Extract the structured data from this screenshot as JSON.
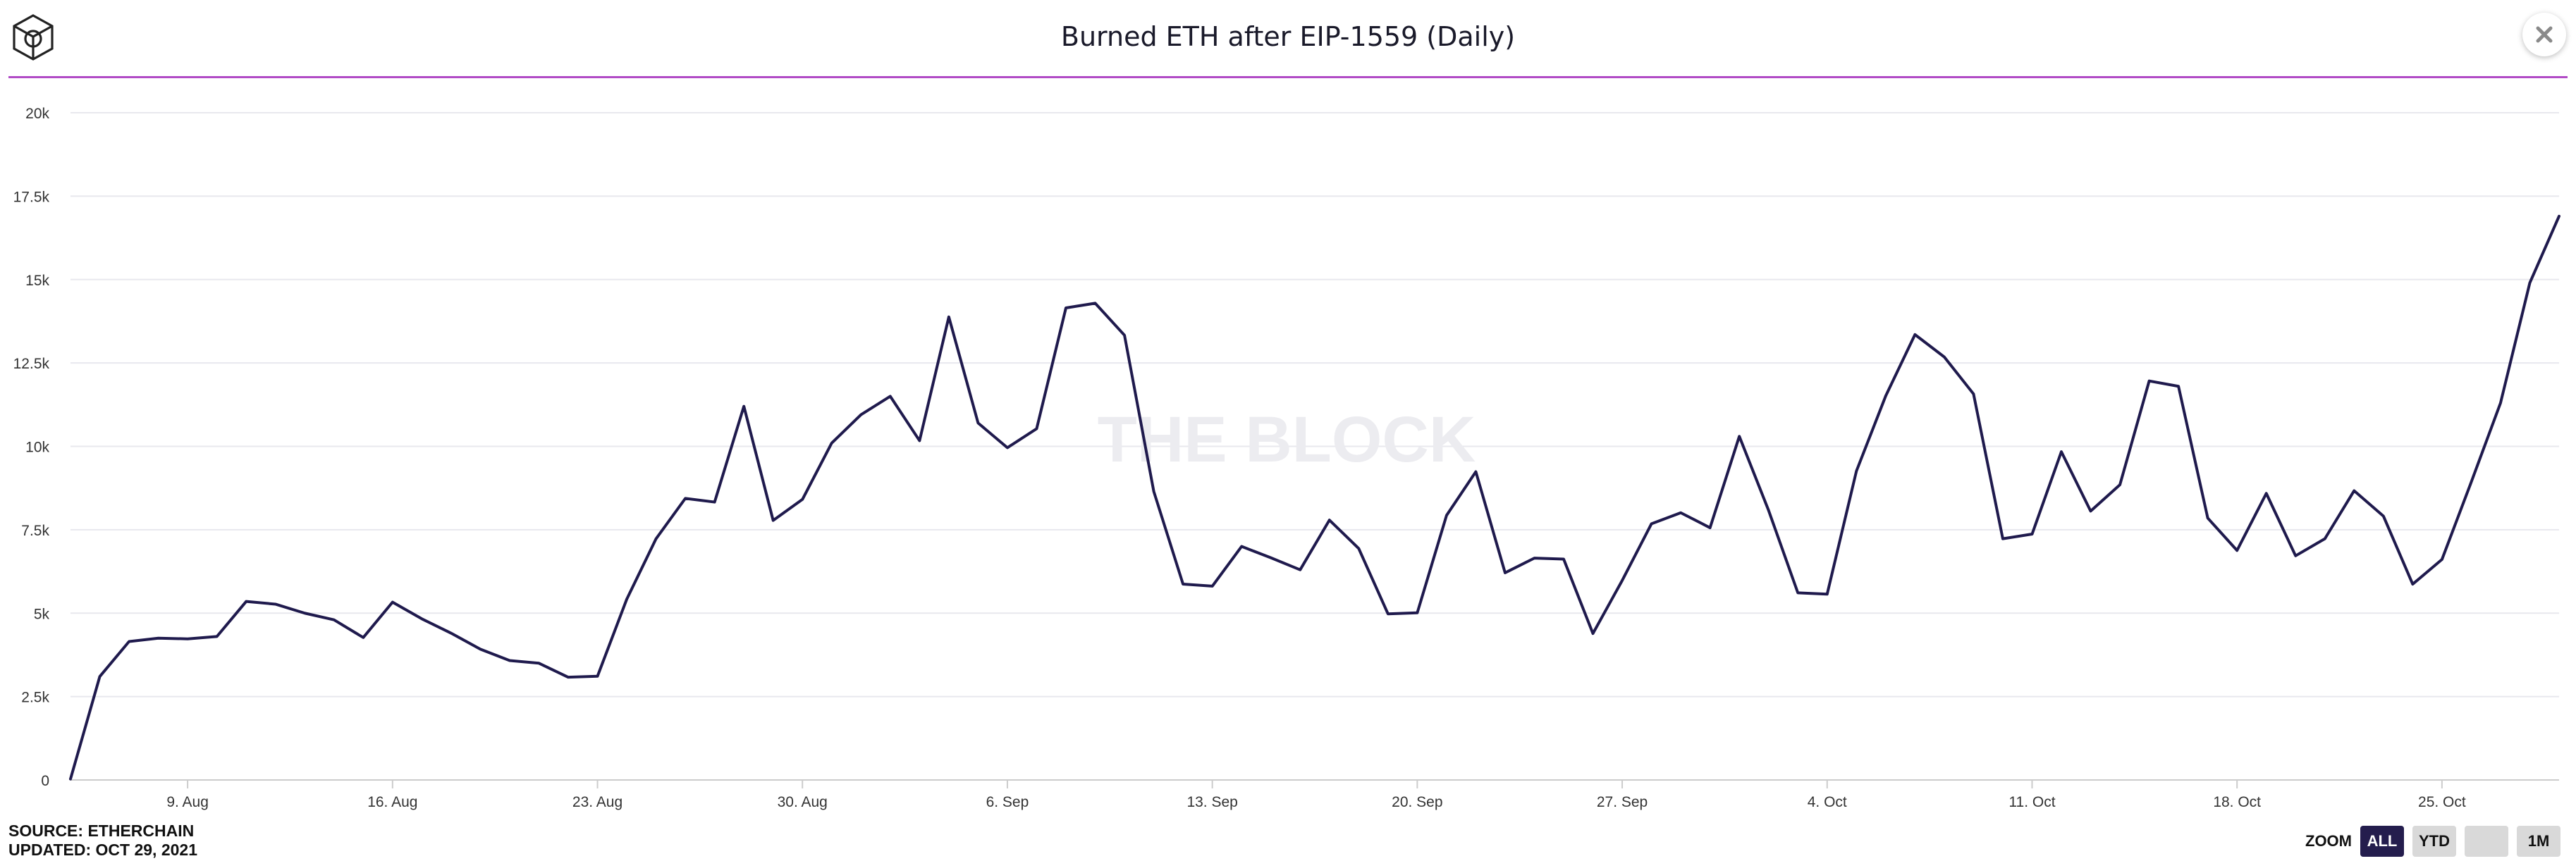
{
  "title": "Burned ETH after EIP-1559 (Daily)",
  "watermark": "THE BLOCK",
  "footer": {
    "source": "SOURCE: ETHERCHAIN",
    "updated": "UPDATED: OCT 29, 2021"
  },
  "zoom": {
    "label": "ZOOM",
    "buttons": [
      "ALL",
      "YTD",
      "",
      "1M"
    ],
    "active": "ALL"
  },
  "icons": {
    "logo": "the-block-cube-logo",
    "close": "close-icon"
  },
  "colors": {
    "line": "#1f1a4d",
    "title_rule": "#b14bc6",
    "grid": "#e8e8ee",
    "active_button": "#241d4d"
  },
  "chart_data": {
    "type": "line",
    "title": "Burned ETH after EIP-1559 (Daily)",
    "xlabel": "",
    "ylabel": "",
    "ylim": [
      0,
      20000
    ],
    "yticks": [
      0,
      2500,
      5000,
      7500,
      10000,
      12500,
      15000,
      17500,
      20000
    ],
    "ytick_labels": [
      "0",
      "2.5k",
      "5k",
      "7.5k",
      "10k",
      "12.5k",
      "15k",
      "17.5k",
      "20k"
    ],
    "xlim": [
      "2021-08-05",
      "2021-10-29"
    ],
    "xticks": [
      "2021-08-09",
      "2021-08-16",
      "2021-08-23",
      "2021-08-30",
      "2021-09-06",
      "2021-09-13",
      "2021-09-20",
      "2021-09-27",
      "2021-10-04",
      "2021-10-11",
      "2021-10-18",
      "2021-10-25"
    ],
    "xtick_labels": [
      "9. Aug",
      "16. Aug",
      "23. Aug",
      "30. Aug",
      "6. Sep",
      "13. Sep",
      "20. Sep",
      "27. Sep",
      "4. Oct",
      "11. Oct",
      "18. Oct",
      "25. Oct"
    ],
    "grid": true,
    "legend": "none",
    "x": [
      "2021-08-05",
      "2021-08-06",
      "2021-08-07",
      "2021-08-08",
      "2021-08-09",
      "2021-08-10",
      "2021-08-11",
      "2021-08-12",
      "2021-08-13",
      "2021-08-14",
      "2021-08-15",
      "2021-08-16",
      "2021-08-17",
      "2021-08-18",
      "2021-08-19",
      "2021-08-20",
      "2021-08-21",
      "2021-08-22",
      "2021-08-23",
      "2021-08-24",
      "2021-08-25",
      "2021-08-26",
      "2021-08-27",
      "2021-08-28",
      "2021-08-29",
      "2021-08-30",
      "2021-08-31",
      "2021-09-01",
      "2021-09-02",
      "2021-09-03",
      "2021-09-04",
      "2021-09-05",
      "2021-09-06",
      "2021-09-07",
      "2021-09-08",
      "2021-09-09",
      "2021-09-10",
      "2021-09-11",
      "2021-09-12",
      "2021-09-13",
      "2021-09-14",
      "2021-09-15",
      "2021-09-16",
      "2021-09-17",
      "2021-09-18",
      "2021-09-19",
      "2021-09-20",
      "2021-09-21",
      "2021-09-22",
      "2021-09-23",
      "2021-09-24",
      "2021-09-25",
      "2021-09-26",
      "2021-09-27",
      "2021-09-28",
      "2021-09-29",
      "2021-09-30",
      "2021-10-01",
      "2021-10-02",
      "2021-10-03",
      "2021-10-04",
      "2021-10-05",
      "2021-10-06",
      "2021-10-07",
      "2021-10-08",
      "2021-10-09",
      "2021-10-10",
      "2021-10-11",
      "2021-10-12",
      "2021-10-13",
      "2021-10-14",
      "2021-10-15",
      "2021-10-16",
      "2021-10-17",
      "2021-10-18",
      "2021-10-19",
      "2021-10-20",
      "2021-10-21",
      "2021-10-22",
      "2021-10-23",
      "2021-10-24",
      "2021-10-25",
      "2021-10-26",
      "2021-10-27",
      "2021-10-28",
      "2021-10-29"
    ],
    "series": [
      {
        "values": [
          30,
          3100,
          4150,
          4250,
          4230,
          4300,
          5350,
          5270,
          5000,
          4800,
          4270,
          5330,
          4830,
          4400,
          3920,
          3580,
          3500,
          3080,
          3110,
          5420,
          7230,
          8440,
          8330,
          11200,
          7780,
          8410,
          10100,
          10950,
          11500,
          10170,
          13880,
          10700,
          9960,
          10530,
          14150,
          14290,
          13330,
          8650,
          5870,
          5810,
          7000,
          6660,
          6300,
          7790,
          6940,
          4980,
          5010,
          7930,
          9240,
          6210,
          6650,
          6620,
          4390,
          5980,
          7680,
          8010,
          7560,
          10300,
          8080,
          5610,
          5570,
          9260,
          11510,
          13350,
          12680,
          11570,
          7230,
          7370,
          9840,
          8060,
          8850,
          11960,
          11800,
          7850,
          6880,
          8590,
          6720,
          7230,
          8670,
          7910,
          5870,
          6610,
          8930,
          11300,
          14900,
          16900
        ]
      }
    ]
  }
}
